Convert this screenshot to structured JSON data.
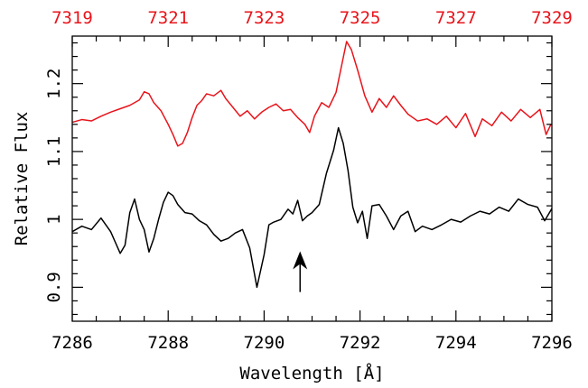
{
  "chart_data": {
    "type": "line",
    "xlabel": "Wavelength [Å]",
    "ylabel": "Relative Flux",
    "xlim": [
      7286,
      7296
    ],
    "ylim": [
      0.85,
      1.27
    ],
    "x_ticks": [
      "7286",
      "7288",
      "7290",
      "7292",
      "7294",
      "7296"
    ],
    "y_ticks": [
      "0.9",
      "1",
      "1.1",
      "1.2"
    ],
    "top_axis": {
      "xlim": [
        7319,
        7329
      ],
      "ticks": [
        "7319",
        "7321",
        "7323",
        "7325",
        "7327",
        "7329"
      ]
    },
    "colors": {
      "black_series": "#000000",
      "red_series": "#e8141b",
      "arrow": "#000000"
    },
    "arrow": {
      "x": 7290.75,
      "y_tail": 0.893,
      "y_head": 0.953
    },
    "series": [
      {
        "color": "#e8141b",
        "axis": "top",
        "points": [
          [
            7319.0,
            1.143
          ],
          [
            7319.2,
            1.147
          ],
          [
            7319.4,
            1.145
          ],
          [
            7319.6,
            1.152
          ],
          [
            7319.8,
            1.158
          ],
          [
            7320.0,
            1.163
          ],
          [
            7320.2,
            1.168
          ],
          [
            7320.4,
            1.176
          ],
          [
            7320.5,
            1.188
          ],
          [
            7320.6,
            1.185
          ],
          [
            7320.7,
            1.172
          ],
          [
            7320.85,
            1.16
          ],
          [
            7321.0,
            1.14
          ],
          [
            7321.1,
            1.125
          ],
          [
            7321.2,
            1.108
          ],
          [
            7321.3,
            1.112
          ],
          [
            7321.4,
            1.128
          ],
          [
            7321.5,
            1.15
          ],
          [
            7321.6,
            1.168
          ],
          [
            7321.7,
            1.175
          ],
          [
            7321.8,
            1.185
          ],
          [
            7321.95,
            1.182
          ],
          [
            7322.1,
            1.19
          ],
          [
            7322.2,
            1.178
          ],
          [
            7322.35,
            1.165
          ],
          [
            7322.5,
            1.152
          ],
          [
            7322.65,
            1.16
          ],
          [
            7322.8,
            1.148
          ],
          [
            7322.95,
            1.158
          ],
          [
            7323.1,
            1.165
          ],
          [
            7323.25,
            1.17
          ],
          [
            7323.4,
            1.16
          ],
          [
            7323.55,
            1.162
          ],
          [
            7323.7,
            1.15
          ],
          [
            7323.85,
            1.14
          ],
          [
            7323.95,
            1.128
          ],
          [
            7324.05,
            1.152
          ],
          [
            7324.2,
            1.172
          ],
          [
            7324.35,
            1.165
          ],
          [
            7324.5,
            1.187
          ],
          [
            7324.62,
            1.228
          ],
          [
            7324.72,
            1.262
          ],
          [
            7324.82,
            1.25
          ],
          [
            7324.95,
            1.22
          ],
          [
            7325.1,
            1.182
          ],
          [
            7325.25,
            1.158
          ],
          [
            7325.4,
            1.178
          ],
          [
            7325.55,
            1.165
          ],
          [
            7325.7,
            1.182
          ],
          [
            7325.85,
            1.168
          ],
          [
            7326.0,
            1.155
          ],
          [
            7326.2,
            1.145
          ],
          [
            7326.4,
            1.148
          ],
          [
            7326.6,
            1.14
          ],
          [
            7326.8,
            1.152
          ],
          [
            7327.0,
            1.135
          ],
          [
            7327.2,
            1.156
          ],
          [
            7327.4,
            1.122
          ],
          [
            7327.55,
            1.148
          ],
          [
            7327.75,
            1.138
          ],
          [
            7327.95,
            1.158
          ],
          [
            7328.15,
            1.145
          ],
          [
            7328.35,
            1.162
          ],
          [
            7328.55,
            1.15
          ],
          [
            7328.75,
            1.162
          ],
          [
            7328.88,
            1.125
          ],
          [
            7328.98,
            1.14
          ]
        ]
      },
      {
        "color": "#000000",
        "axis": "bottom",
        "points": [
          [
            7286.0,
            0.982
          ],
          [
            7286.2,
            0.99
          ],
          [
            7286.4,
            0.985
          ],
          [
            7286.6,
            1.002
          ],
          [
            7286.8,
            0.982
          ],
          [
            7287.0,
            0.95
          ],
          [
            7287.1,
            0.962
          ],
          [
            7287.2,
            1.01
          ],
          [
            7287.3,
            1.03
          ],
          [
            7287.4,
            1.0
          ],
          [
            7287.5,
            0.985
          ],
          [
            7287.6,
            0.952
          ],
          [
            7287.7,
            0.972
          ],
          [
            7287.8,
            1.0
          ],
          [
            7287.9,
            1.025
          ],
          [
            7288.0,
            1.04
          ],
          [
            7288.1,
            1.035
          ],
          [
            7288.2,
            1.022
          ],
          [
            7288.35,
            1.01
          ],
          [
            7288.5,
            1.008
          ],
          [
            7288.65,
            0.998
          ],
          [
            7288.8,
            0.992
          ],
          [
            7288.95,
            0.978
          ],
          [
            7289.1,
            0.968
          ],
          [
            7289.25,
            0.972
          ],
          [
            7289.4,
            0.98
          ],
          [
            7289.55,
            0.985
          ],
          [
            7289.7,
            0.958
          ],
          [
            7289.85,
            0.9
          ],
          [
            7290.0,
            0.948
          ],
          [
            7290.1,
            0.992
          ],
          [
            7290.2,
            0.996
          ],
          [
            7290.35,
            1.0
          ],
          [
            7290.5,
            1.015
          ],
          [
            7290.6,
            1.008
          ],
          [
            7290.7,
            1.028
          ],
          [
            7290.8,
            0.998
          ],
          [
            7290.9,
            1.005
          ],
          [
            7291.0,
            1.01
          ],
          [
            7291.15,
            1.022
          ],
          [
            7291.3,
            1.068
          ],
          [
            7291.45,
            1.102
          ],
          [
            7291.55,
            1.135
          ],
          [
            7291.65,
            1.112
          ],
          [
            7291.75,
            1.072
          ],
          [
            7291.85,
            1.018
          ],
          [
            7291.95,
            0.995
          ],
          [
            7292.05,
            1.012
          ],
          [
            7292.15,
            0.972
          ],
          [
            7292.25,
            1.02
          ],
          [
            7292.4,
            1.022
          ],
          [
            7292.55,
            1.005
          ],
          [
            7292.7,
            0.985
          ],
          [
            7292.85,
            1.005
          ],
          [
            7293.0,
            1.012
          ],
          [
            7293.15,
            0.982
          ],
          [
            7293.3,
            0.99
          ],
          [
            7293.5,
            0.985
          ],
          [
            7293.7,
            0.992
          ],
          [
            7293.9,
            1.0
          ],
          [
            7294.1,
            0.996
          ],
          [
            7294.3,
            1.005
          ],
          [
            7294.5,
            1.012
          ],
          [
            7294.7,
            1.008
          ],
          [
            7294.9,
            1.018
          ],
          [
            7295.1,
            1.012
          ],
          [
            7295.3,
            1.03
          ],
          [
            7295.5,
            1.022
          ],
          [
            7295.7,
            1.018
          ],
          [
            7295.85,
            0.998
          ],
          [
            7296.0,
            1.016
          ]
        ]
      }
    ]
  }
}
